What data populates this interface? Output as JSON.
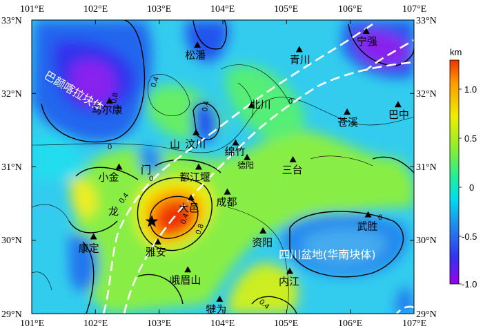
{
  "axes": {
    "x_ticks": [
      "101°E",
      "102°E",
      "103°E",
      "104°E",
      "105°E",
      "106°E",
      "107°E"
    ],
    "y_ticks": [
      "33°N",
      "32°N",
      "31°N",
      "30°N",
      "29°N"
    ],
    "xlim": [
      101,
      107
    ],
    "ylim": [
      29,
      33
    ]
  },
  "colorbar": {
    "unit": "km",
    "ticks": [
      "1.0",
      "0.5",
      "0",
      "-0.5",
      "-1.0"
    ],
    "range": [
      -1.0,
      1.25
    ],
    "colors": [
      "#9900ee",
      "#3333ee",
      "#2288ee",
      "#00ddee",
      "#22ee99",
      "#88ee33",
      "#eeee00",
      "#ff9900",
      "#ee3300"
    ]
  },
  "regions": {
    "bayan_har": "巴颜喀拉块体",
    "sichuan_basin": "四川盆地(华南块体)"
  },
  "cities": [
    {
      "name": "松潘",
      "lon": 103.6,
      "lat": 32.66
    },
    {
      "name": "青川",
      "lon": 105.2,
      "lat": 32.6
    },
    {
      "name": "宁强",
      "lon": 106.25,
      "lat": 32.85
    },
    {
      "name": "马尔康",
      "lon": 102.22,
      "lat": 31.9
    },
    {
      "name": "北川",
      "lon": 104.45,
      "lat": 31.84
    },
    {
      "name": "苍溪",
      "lon": 105.95,
      "lat": 31.75
    },
    {
      "name": "巴中",
      "lon": 106.75,
      "lat": 31.85
    },
    {
      "name": "汶川",
      "lon": 103.58,
      "lat": 31.47
    },
    {
      "name": "绵竹",
      "lon": 104.2,
      "lat": 31.33
    },
    {
      "name": "德阳",
      "lon": 104.38,
      "lat": 31.13
    },
    {
      "name": "三台",
      "lon": 105.1,
      "lat": 31.1
    },
    {
      "name": "小金",
      "lon": 102.37,
      "lat": 31.0
    },
    {
      "name": "都江堰",
      "lon": 103.62,
      "lat": 31.0
    },
    {
      "name": "成都",
      "lon": 104.07,
      "lat": 30.66
    },
    {
      "name": "大邑",
      "lon": 103.5,
      "lat": 30.58
    },
    {
      "name": "武胜",
      "lon": 106.28,
      "lat": 30.35
    },
    {
      "name": "资阳",
      "lon": 104.63,
      "lat": 30.13
    },
    {
      "name": "康定",
      "lon": 101.97,
      "lat": 30.05
    },
    {
      "name": "雅安",
      "lon": 102.98,
      "lat": 29.98
    },
    {
      "name": "内江",
      "lon": 105.05,
      "lat": 29.58
    },
    {
      "name": "峨眉山",
      "lon": 103.45,
      "lat": 29.6
    },
    {
      "name": "犍为",
      "lon": 103.95,
      "lat": 29.2
    }
  ],
  "extra_labels": {
    "shan": "山",
    "men": "门",
    "long": "龙"
  },
  "contour_labels": [
    "0.8",
    "0.4",
    "0.4",
    "0",
    "0",
    "0.4",
    "0",
    "0.4",
    "0.8",
    "0.4",
    "0"
  ],
  "markers": {
    "epicenter_star": "star-icon"
  }
}
